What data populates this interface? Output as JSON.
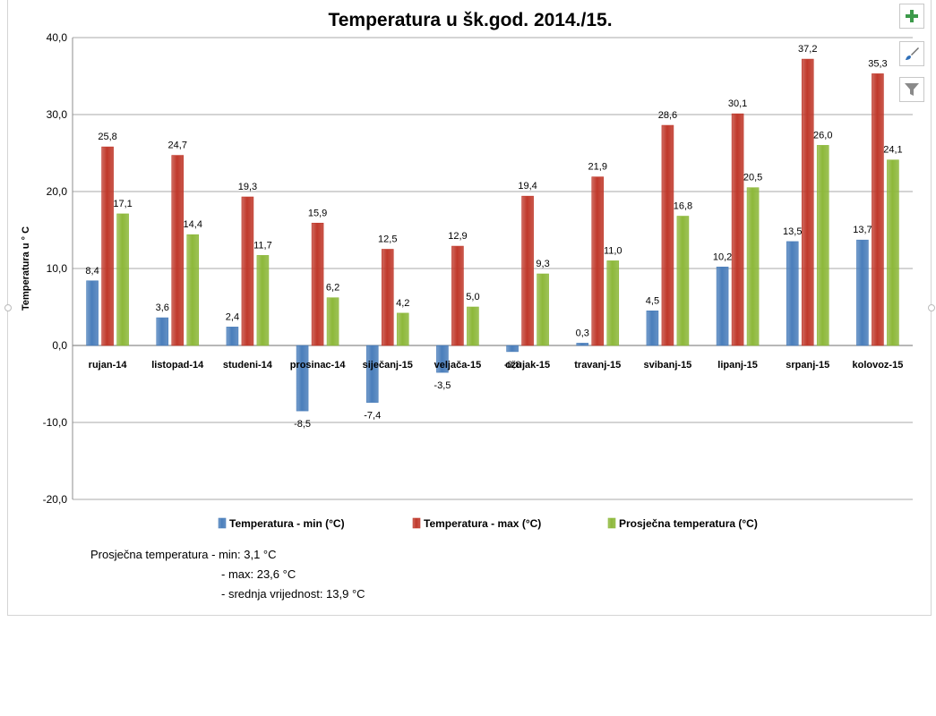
{
  "chart_data": {
    "type": "bar",
    "title": "Temperatura u šk.god. 2014./15.",
    "ylabel": "Temperatura u ° C",
    "xlabel": "",
    "ylim": [
      -20,
      40
    ],
    "yticks": [
      40,
      30,
      20,
      10,
      0,
      -10,
      -20
    ],
    "ytick_labels": [
      "40,0",
      "30,0",
      "20,0",
      "10,0",
      "0,0",
      "-10,0",
      "-20,0"
    ],
    "grid": "horizontal",
    "legend": "bottom",
    "categories": [
      "rujan-14",
      "listopad-14",
      "studeni-14",
      "prosinac-14",
      "siječanj-15",
      "veljača-15",
      "ožujak-15",
      "travanj-15",
      "svibanj-15",
      "lipanj-15",
      "srpanj-15",
      "kolovoz-15"
    ],
    "series": [
      {
        "name": "Temperatura - min (°C)",
        "color": "#4a7ebb",
        "values": [
          8.4,
          3.6,
          2.4,
          -8.5,
          -7.4,
          -3.5,
          -0.8,
          0.3,
          4.5,
          10.2,
          13.5,
          13.7
        ],
        "labels": [
          "8,4",
          "3,6",
          "2,4",
          "-8,5",
          "-7,4",
          "-3,5",
          "-0,8",
          "0,3",
          "4,5",
          "10,2",
          "13,5",
          "13,7"
        ]
      },
      {
        "name": "Temperatura - max (°C)",
        "color": "#c0392b",
        "values": [
          25.8,
          24.7,
          19.3,
          15.9,
          12.5,
          12.9,
          19.4,
          21.9,
          28.6,
          30.1,
          37.2,
          35.3
        ],
        "labels": [
          "25,8",
          "24,7",
          "19,3",
          "15,9",
          "12,5",
          "12,9",
          "19,4",
          "21,9",
          "28,6",
          "30,1",
          "37,2",
          "35,3"
        ]
      },
      {
        "name": "Prosječna temperatura (°C)",
        "color": "#8db83a",
        "values": [
          17.1,
          14.4,
          11.7,
          6.2,
          4.2,
          5.0,
          9.3,
          11.0,
          16.8,
          20.5,
          26.0,
          24.1
        ],
        "labels": [
          "17,1",
          "14,4",
          "11,7",
          "6,2",
          "4,2",
          "5,0",
          "9,3",
          "11,0",
          "16,8",
          "20,5",
          "26,0",
          "24,1"
        ]
      }
    ]
  },
  "notes": {
    "line1": "Prosječna temperatura - min: 3,1 °C",
    "line2": "- max: 23,6 °C",
    "line3": "- srednja vrijednost: 13,9 °C"
  },
  "side_buttons": {
    "add_icon": "plus-icon",
    "style_icon": "brush-icon",
    "filter_icon": "filter-icon",
    "add_color": "#3c9a4a"
  }
}
